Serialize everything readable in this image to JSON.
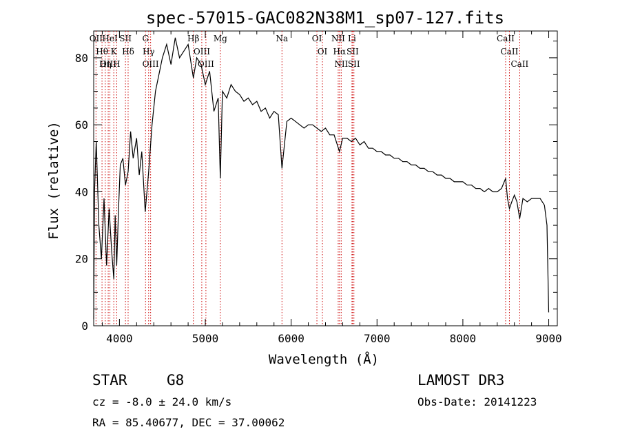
{
  "chart_data": {
    "type": "line",
    "title": "spec-57015-GAC082N38M1_sp07-127.fits",
    "xlabel": "Wavelength (Å)",
    "ylabel": "Flux (relative)",
    "xlim": [
      3700,
      9100
    ],
    "ylim": [
      0,
      88
    ],
    "xticks": [
      4000,
      5000,
      6000,
      7000,
      8000,
      9000
    ],
    "yticks": [
      0,
      20,
      40,
      60,
      80
    ],
    "series": [
      {
        "name": "flux",
        "x": [
          3700,
          3710,
          3730,
          3760,
          3790,
          3820,
          3850,
          3880,
          3910,
          3934,
          3950,
          3968,
          3990,
          4010,
          4040,
          4070,
          4101,
          4130,
          4160,
          4200,
          4230,
          4260,
          4300,
          4340,
          4380,
          4420,
          4460,
          4500,
          4550,
          4600,
          4650,
          4700,
          4750,
          4800,
          4861,
          4900,
          4950,
          5000,
          5050,
          5100,
          5150,
          5175,
          5200,
          5250,
          5300,
          5350,
          5400,
          5450,
          5500,
          5550,
          5600,
          5650,
          5700,
          5750,
          5800,
          5850,
          5893,
          5950,
          6000,
          6050,
          6100,
          6150,
          6200,
          6250,
          6300,
          6350,
          6400,
          6450,
          6500,
          6563,
          6600,
          6650,
          6700,
          6750,
          6800,
          6850,
          6900,
          6950,
          7000,
          7050,
          7100,
          7150,
          7200,
          7250,
          7300,
          7350,
          7400,
          7450,
          7500,
          7550,
          7600,
          7650,
          7700,
          7750,
          7800,
          7850,
          7900,
          7950,
          8000,
          8050,
          8100,
          8150,
          8200,
          8250,
          8300,
          8350,
          8400,
          8450,
          8498,
          8520,
          8542,
          8570,
          8600,
          8630,
          8662,
          8700,
          8750,
          8800,
          8850,
          8900,
          8950,
          8980,
          9000
        ],
        "y": [
          2,
          40,
          55,
          30,
          20,
          38,
          18,
          35,
          22,
          14,
          33,
          18,
          35,
          48,
          50,
          42,
          46,
          58,
          50,
          56,
          45,
          52,
          34,
          46,
          60,
          70,
          75,
          80,
          84,
          78,
          86,
          80,
          82,
          84,
          74,
          80,
          78,
          72,
          76,
          64,
          68,
          44,
          70,
          68,
          72,
          70,
          69,
          67,
          68,
          66,
          67,
          64,
          65,
          62,
          64,
          63,
          47,
          61,
          62,
          61,
          60,
          59,
          60,
          60,
          59,
          58,
          59,
          57,
          57,
          52,
          56,
          56,
          55,
          56,
          54,
          55,
          53,
          53,
          52,
          52,
          51,
          51,
          50,
          50,
          49,
          49,
          48,
          48,
          47,
          47,
          46,
          46,
          45,
          45,
          44,
          44,
          43,
          43,
          43,
          42,
          42,
          41,
          41,
          40,
          41,
          40,
          40,
          41,
          44,
          38,
          35,
          37,
          39,
          37,
          32,
          38,
          37,
          38,
          38,
          38,
          36,
          30,
          4
        ]
      }
    ],
    "lines": [
      {
        "label": "Hθ",
        "wave": 3797
      },
      {
        "label": "OII",
        "wave": 3727
      },
      {
        "label": "OIII",
        "wave": 3869
      },
      {
        "label": "K",
        "wave": 3934
      },
      {
        "label": "HeI",
        "wave": 3889
      },
      {
        "label": "Hη",
        "wave": 3835
      },
      {
        "label": "H",
        "wave": 3968
      },
      {
        "label": "SII",
        "wave": 4070
      },
      {
        "label": "Hδ",
        "wave": 4101
      },
      {
        "label": "OIII",
        "wave": 4363
      },
      {
        "label": "Hγ",
        "wave": 4340
      },
      {
        "label": "G",
        "wave": 4304
      },
      {
        "label": "Hβ",
        "wave": 4861
      },
      {
        "label": "OIII",
        "wave": 5007
      },
      {
        "label": "OIII",
        "wave": 4959
      },
      {
        "label": "Mg",
        "wave": 5175
      },
      {
        "label": "Na",
        "wave": 5893
      },
      {
        "label": "OI",
        "wave": 6300
      },
      {
        "label": "OI",
        "wave": 6364
      },
      {
        "label": "Hα",
        "wave": 6563
      },
      {
        "label": "NII",
        "wave": 6548
      },
      {
        "label": "NII",
        "wave": 6583
      },
      {
        "label": "SII",
        "wave": 6716
      },
      {
        "label": "Li",
        "wave": 6708
      },
      {
        "label": "SII",
        "wave": 6731
      },
      {
        "label": "CaII",
        "wave": 8542
      },
      {
        "label": "CaII",
        "wave": 8498
      },
      {
        "label": "CaII",
        "wave": 8662
      }
    ]
  },
  "footer": {
    "object_class": "STAR",
    "subclass": "G8",
    "redshift": "cz = -8.0 ± 24.0 km/s",
    "coords": "RA =  85.40677, DEC =  37.00062",
    "survey": "LAMOST DR3",
    "obs_date": "Obs-Date: 20141223"
  },
  "colors": {
    "spectrum": "#000000",
    "line_markers": "#cc0000",
    "axes": "#000000"
  }
}
